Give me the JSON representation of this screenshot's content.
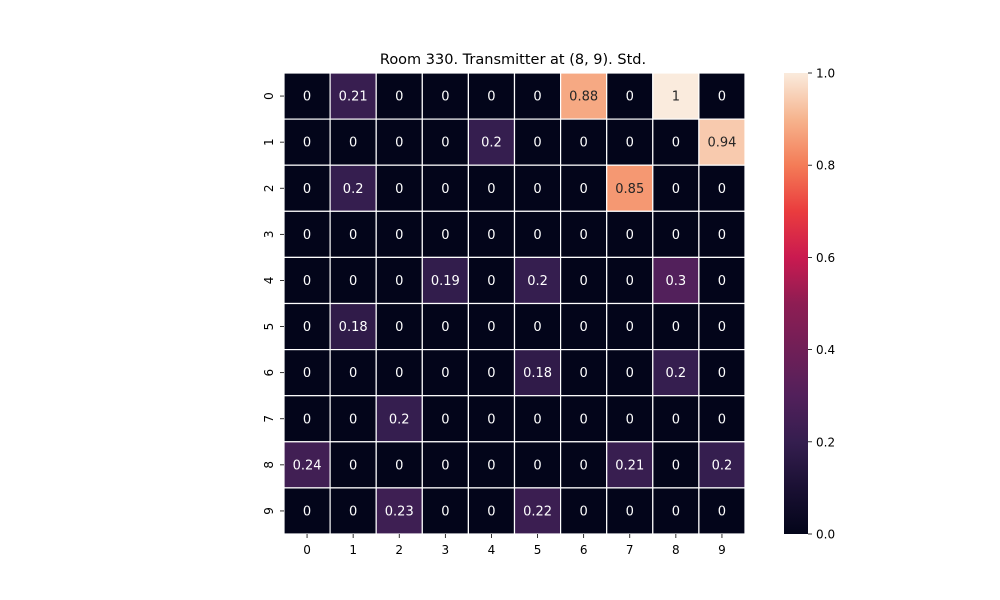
{
  "chart_data": {
    "type": "heatmap",
    "title": "Room 330. Transmitter at (8, 9). Std.",
    "xlabel": "",
    "ylabel": "",
    "x_tick_labels": [
      "0",
      "1",
      "2",
      "3",
      "4",
      "5",
      "6",
      "7",
      "8",
      "9"
    ],
    "y_tick_labels": [
      "0",
      "1",
      "2",
      "3",
      "4",
      "5",
      "6",
      "7",
      "8",
      "9"
    ],
    "values": [
      [
        0,
        0.21,
        0,
        0,
        0,
        0,
        0.88,
        0,
        1,
        0
      ],
      [
        0,
        0,
        0,
        0,
        0.2,
        0,
        0,
        0,
        0,
        0.94
      ],
      [
        0,
        0.2,
        0,
        0,
        0,
        0,
        0,
        0.85,
        0,
        0
      ],
      [
        0,
        0,
        0,
        0,
        0,
        0,
        0,
        0,
        0,
        0
      ],
      [
        0,
        0,
        0,
        0.19,
        0,
        0.2,
        0,
        0,
        0.3,
        0
      ],
      [
        0,
        0.18,
        0,
        0,
        0,
        0,
        0,
        0,
        0,
        0
      ],
      [
        0,
        0,
        0,
        0,
        0,
        0.18,
        0,
        0,
        0.2,
        0
      ],
      [
        0,
        0,
        0.2,
        0,
        0,
        0,
        0,
        0,
        0,
        0
      ],
      [
        0.24,
        0,
        0,
        0,
        0,
        0,
        0,
        0.21,
        0,
        0.2
      ],
      [
        0,
        0,
        0.23,
        0,
        0,
        0.22,
        0,
        0,
        0,
        0
      ]
    ],
    "annotations": [
      [
        "0",
        "0.21",
        "0",
        "0",
        "0",
        "0",
        "0.88",
        "0",
        "1",
        "0"
      ],
      [
        "0",
        "0",
        "0",
        "0",
        "0.2",
        "0",
        "0",
        "0",
        "0",
        "0.94"
      ],
      [
        "0",
        "0.2",
        "0",
        "0",
        "0",
        "0",
        "0",
        "0.85",
        "0",
        "0"
      ],
      [
        "0",
        "0",
        "0",
        "0",
        "0",
        "0",
        "0",
        "0",
        "0",
        "0"
      ],
      [
        "0",
        "0",
        "0",
        "0.19",
        "0",
        "0.2",
        "0",
        "0",
        "0.3",
        "0"
      ],
      [
        "0",
        "0.18",
        "0",
        "0",
        "0",
        "0",
        "0",
        "0",
        "0",
        "0"
      ],
      [
        "0",
        "0",
        "0",
        "0",
        "0",
        "0.18",
        "0",
        "0",
        "0.2",
        "0"
      ],
      [
        "0",
        "0",
        "0.2",
        "0",
        "0",
        "0",
        "0",
        "0",
        "0",
        "0"
      ],
      [
        "0.24",
        "0",
        "0",
        "0",
        "0",
        "0",
        "0",
        "0.21",
        "0",
        "0.2"
      ],
      [
        "0",
        "0",
        "0.23",
        "0",
        "0",
        "0.22",
        "0",
        "0",
        "0",
        "0"
      ]
    ],
    "vmin": 0,
    "vmax": 1,
    "colormap": "rocket",
    "colorbar_ticks": [
      "0.0",
      "0.2",
      "0.4",
      "0.6",
      "0.8",
      "1.0"
    ],
    "colorbar_tick_values": [
      0,
      0.2,
      0.4,
      0.6,
      0.8,
      1.0
    ]
  }
}
